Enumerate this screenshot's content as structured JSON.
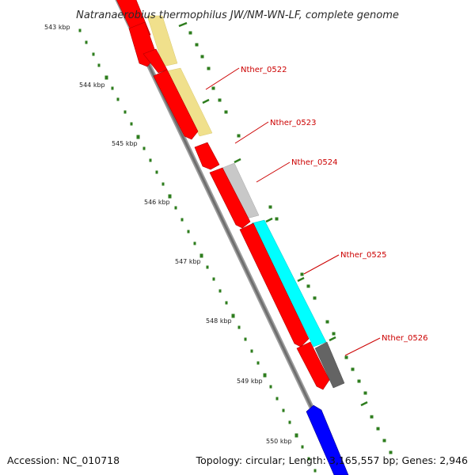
{
  "title": "Natranaerobius thermophilus JW/NM-WN-LF, complete genome",
  "footer": {
    "accession": "Accession: NC_010718",
    "summary": "Topology: circular; Length: 3,165,557 bp; Genes: 2,946"
  },
  "colors": {
    "backbone": "#8c8c8c",
    "forward_cds": "#ff0000",
    "reverse_cds": "#0000ff",
    "tick": "#2e7d1e",
    "label": "#cc0000",
    "feature_khaki": "#f0e08c",
    "feature_lightgray": "#c8c8c8",
    "feature_cyan": "#00ffff",
    "feature_darkgray": "#646464"
  },
  "ticks": [
    {
      "label": "543 kbp"
    },
    {
      "label": "544 kbp"
    },
    {
      "label": "545 kbp"
    },
    {
      "label": "546 kbp"
    },
    {
      "label": "547 kbp"
    },
    {
      "label": "548 kbp"
    },
    {
      "label": "549 kbp"
    },
    {
      "label": "550 kbp"
    }
  ],
  "genes": [
    {
      "label": "Nther_0522"
    },
    {
      "label": "Nther_0523"
    },
    {
      "label": "Nther_0524"
    },
    {
      "label": "Nther_0525"
    },
    {
      "label": "Nther_0526"
    }
  ]
}
